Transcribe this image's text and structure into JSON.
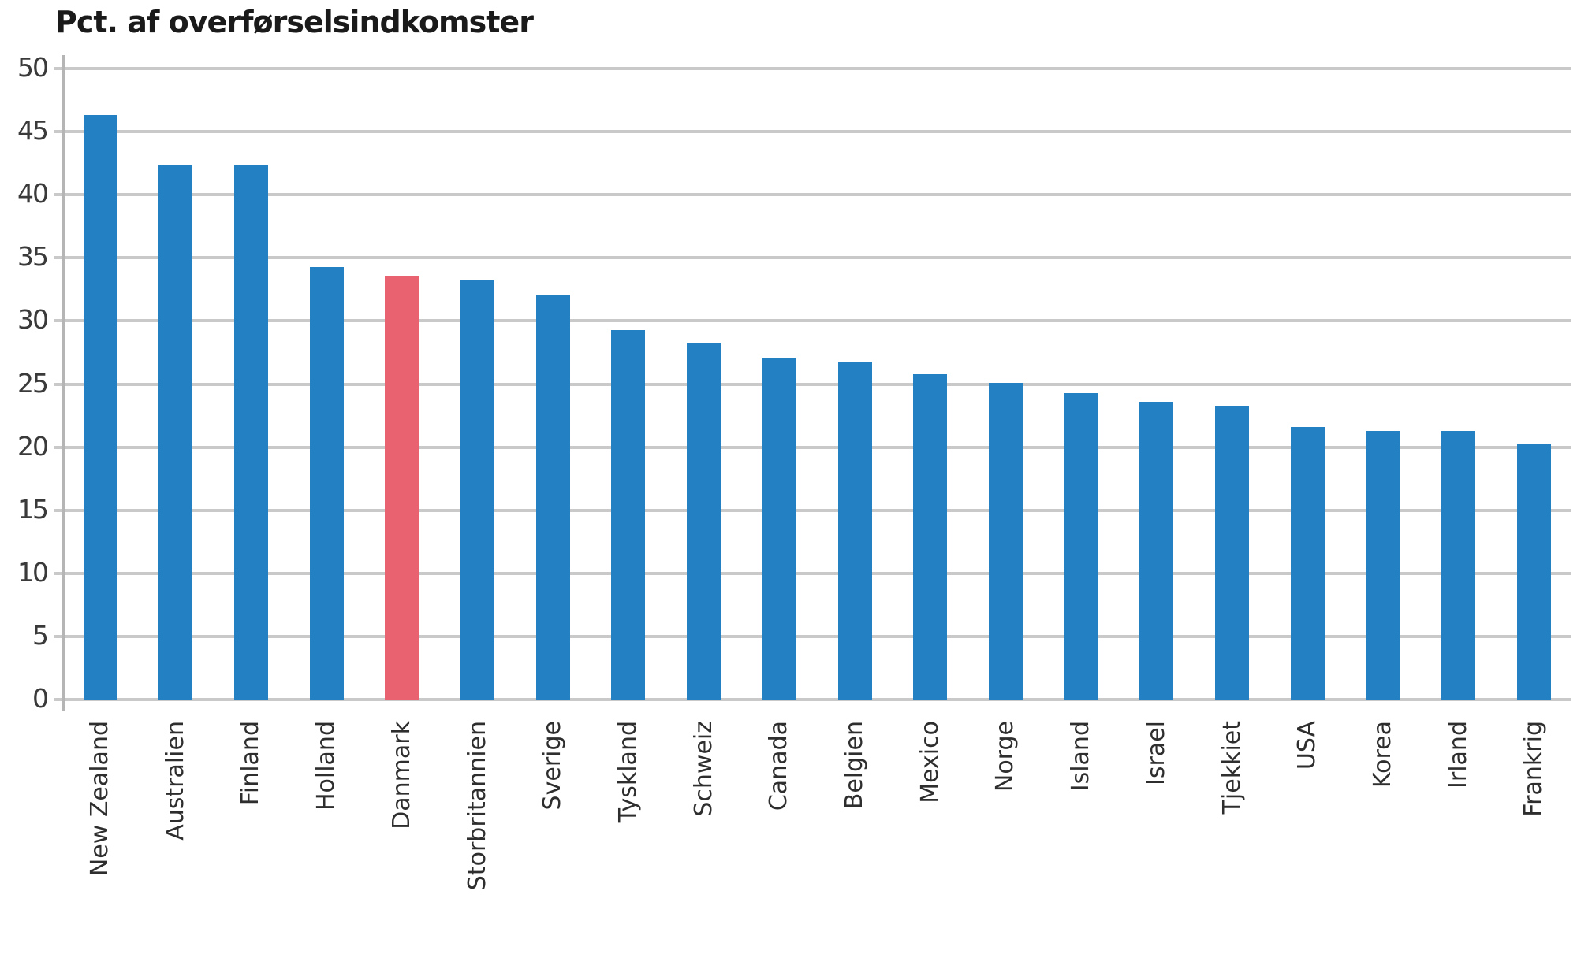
{
  "chart_data": {
    "type": "bar",
    "title": "Pct. af overførselsindkomster",
    "xlabel": "",
    "ylabel": "Pct. af overførselsindkomster",
    "ylim": [
      0,
      50
    ],
    "yticks": [
      0,
      5,
      10,
      15,
      20,
      25,
      30,
      35,
      40,
      45,
      50
    ],
    "grid": true,
    "legend": null,
    "categories": [
      "New Zealand",
      "Australien",
      "Finland",
      "Holland",
      "Danmark",
      "Storbritannien",
      "Sverige",
      "Tyskland",
      "Schweiz",
      "Canada",
      "Belgien",
      "Mexico",
      "Norge",
      "Island",
      "Israel",
      "Tjekkiet",
      "USA",
      "Korea",
      "Irland",
      "Frankrig"
    ],
    "values": [
      46.3,
      42.4,
      42.4,
      34.3,
      33.6,
      33.3,
      32.0,
      29.3,
      28.3,
      27.0,
      26.7,
      25.8,
      25.1,
      24.3,
      23.6,
      23.3,
      21.6,
      21.3,
      21.3,
      20.2
    ],
    "highlight": "Danmark",
    "colors": {
      "default": "#2380C3",
      "highlight": "#E8636F",
      "grid": "#c9c9c9",
      "axis": "#b5b5b5",
      "text": "#2e2e2e"
    }
  },
  "header": {
    "title": "Pct. af overførselsindkomster"
  },
  "yaxis": {
    "tick_labels": [
      "0",
      "5",
      "10",
      "15",
      "20",
      "25",
      "30",
      "35",
      "40",
      "45",
      "50"
    ]
  }
}
